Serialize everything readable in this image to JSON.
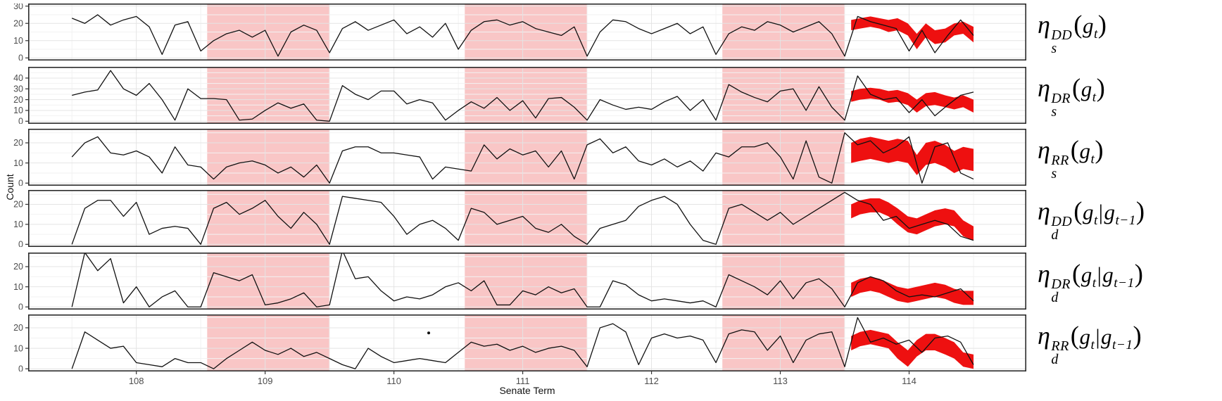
{
  "axes": {
    "x_label": "Senate Term",
    "y_label": "Count",
    "x_ticks": [
      108,
      109,
      110,
      111,
      112,
      113,
      114
    ]
  },
  "colors": {
    "band": "#f9c6c6",
    "ribbon": "#ee1010",
    "line": "#111111",
    "grid_major": "#e4e4e4",
    "grid_minor": "#f2f2f2",
    "panel_border": "#2b2b2b",
    "tick_text": "#4d4d4d",
    "tick_mark": "#333333",
    "background": "#ffffff"
  },
  "chart_data": {
    "type": "line",
    "xlabel": "Senate Term",
    "ylabel": "Count",
    "xlim": [
      107.16,
      114.91
    ],
    "x_start": 107.5,
    "x_step": 0.1,
    "x_count": 71,
    "shaded_terms": [
      [
        108.55,
        109.5
      ],
      [
        110.55,
        111.5
      ],
      [
        112.55,
        113.5
      ]
    ],
    "forecast_x": [
      113.55,
      113.62,
      113.7,
      113.77,
      113.84,
      113.91,
      113.99,
      114.06,
      114.13,
      114.2,
      114.28,
      114.35,
      114.42,
      114.5
    ],
    "panels": [
      {
        "name": "eta-s-DD",
        "label": {
          "sub": "s",
          "sup": "DD",
          "args": [
            "g_t"
          ],
          "text": "η_s^DD(g_t)"
        },
        "ylim": [
          -1.5,
          31.5
        ],
        "yticks": [
          0,
          10,
          20,
          30
        ],
        "yminor": [
          5,
          15,
          25
        ],
        "y": [
          23,
          20,
          25,
          19,
          22,
          24,
          18,
          2,
          19,
          21,
          4,
          10,
          14,
          16,
          12,
          16,
          1,
          15,
          19,
          16,
          3,
          17,
          21,
          16,
          19,
          22,
          14,
          18,
          12,
          20,
          5,
          16,
          21,
          22,
          19,
          21,
          17,
          15,
          13,
          18,
          1,
          15,
          22,
          21,
          17,
          14,
          17,
          20,
          14,
          18,
          2,
          14,
          18,
          16,
          21,
          19,
          15,
          18,
          21,
          14,
          1,
          24,
          21,
          19,
          17,
          4,
          16,
          3,
          13,
          22,
          13
        ],
        "ribbon_hi": [
          22,
          23,
          24,
          23,
          22,
          23,
          20,
          14,
          20,
          16,
          17,
          20,
          21,
          18
        ],
        "ribbon_lo": [
          16,
          17,
          18,
          17,
          15,
          16,
          13,
          5,
          12,
          8,
          9,
          13,
          14,
          9
        ]
      },
      {
        "name": "eta-s-DR",
        "label": {
          "sub": "s",
          "sup": "DR",
          "args": [
            "g_t"
          ],
          "text": "η_s^DR(g_t)"
        },
        "ylim": [
          -2.4,
          50.4
        ],
        "yticks": [
          0,
          10,
          20,
          30,
          40
        ],
        "yminor": [
          5,
          15,
          25,
          35,
          45
        ],
        "y": [
          24,
          27,
          29,
          47,
          30,
          24,
          35,
          20,
          1,
          30,
          21,
          21,
          20,
          1,
          2,
          10,
          17,
          12,
          16,
          1,
          0,
          33,
          25,
          20,
          28,
          28,
          16,
          20,
          17,
          1,
          10,
          18,
          12,
          22,
          10,
          19,
          3,
          21,
          22,
          13,
          1,
          20,
          15,
          11,
          13,
          11,
          18,
          23,
          10,
          20,
          1,
          34,
          27,
          22,
          18,
          28,
          30,
          10,
          32,
          13,
          1,
          42,
          25,
          20,
          22,
          8,
          20,
          5,
          15,
          24,
          27
        ],
        "ribbon_hi": [
          28,
          30,
          31,
          30,
          28,
          29,
          26,
          20,
          26,
          27,
          24,
          22,
          24,
          20
        ],
        "ribbon_lo": [
          18,
          20,
          21,
          20,
          17,
          18,
          15,
          8,
          14,
          15,
          13,
          11,
          13,
          8
        ]
      },
      {
        "name": "eta-s-RR",
        "label": {
          "sub": "s",
          "sup": "RR",
          "args": [
            "g_t"
          ],
          "text": "η_s^RR(g_t)"
        },
        "ylim": [
          -1.3,
          27
        ],
        "yticks": [
          0,
          10,
          20
        ],
        "yminor": [
          5,
          15,
          25
        ],
        "y": [
          13,
          20,
          23,
          15,
          14,
          16,
          13,
          5,
          18,
          9,
          8,
          2,
          8,
          10,
          11,
          9,
          5,
          8,
          3,
          9,
          0,
          16,
          18,
          18,
          15,
          15,
          14,
          13,
          2,
          8,
          7,
          6,
          19,
          12,
          17,
          14,
          16,
          8,
          16,
          2,
          19,
          22,
          15,
          18,
          11,
          9,
          12,
          8,
          11,
          6,
          15,
          13,
          18,
          18,
          20,
          13,
          2,
          21,
          3,
          0,
          25,
          19,
          21,
          15,
          18,
          23,
          0,
          18,
          20,
          5,
          2
        ],
        "ribbon_hi": [
          20,
          22,
          23,
          22,
          21,
          22,
          21,
          14,
          20,
          21,
          19,
          16,
          18,
          17
        ],
        "ribbon_lo": [
          10,
          11,
          12,
          11,
          10,
          11,
          10,
          4,
          9,
          10,
          8,
          5,
          7,
          6
        ]
      },
      {
        "name": "eta-d-DD",
        "label": {
          "sub": "d",
          "sup": "DD",
          "args": [
            "g_t",
            "g_t−1"
          ],
          "text": "η_d^DD(g_t|g_t−1)"
        },
        "ylim": [
          -1.3,
          27.2
        ],
        "yticks": [
          0,
          10,
          20
        ],
        "yminor": [
          5,
          15,
          25
        ],
        "y": [
          0,
          18,
          22,
          22,
          14,
          21,
          5,
          8,
          9,
          8,
          0,
          18,
          21,
          15,
          18,
          22,
          14,
          8,
          16,
          10,
          0,
          24,
          23,
          22,
          21,
          14,
          5,
          10,
          12,
          8,
          2,
          18,
          16,
          10,
          12,
          14,
          8,
          6,
          10,
          4,
          0,
          8,
          10,
          12,
          19,
          22,
          24,
          20,
          10,
          2,
          0,
          18,
          20,
          16,
          12,
          16,
          10,
          14,
          18,
          22,
          26,
          22,
          20,
          12,
          14,
          8,
          10,
          12,
          10,
          4,
          2
        ],
        "ribbon_hi": [
          20,
          22,
          23,
          23,
          21,
          18,
          14,
          13,
          15,
          17,
          18,
          17,
          12,
          9
        ],
        "ribbon_lo": [
          13,
          15,
          16,
          16,
          14,
          10,
          6,
          5,
          7,
          9,
          10,
          9,
          4,
          2
        ]
      },
      {
        "name": "eta-d-DR",
        "label": {
          "sub": "d",
          "sup": "DR",
          "args": [
            "g_t",
            "g_t−1"
          ],
          "text": "η_d^DR(g_t|g_t−1)"
        },
        "ylim": [
          -1.3,
          27
        ],
        "yticks": [
          0,
          10,
          20
        ],
        "yminor": [
          5,
          15,
          25
        ],
        "y": [
          0,
          27,
          18,
          24,
          2,
          10,
          0,
          5,
          8,
          0,
          0,
          17,
          15,
          13,
          16,
          1,
          2,
          4,
          7,
          0,
          1,
          28,
          14,
          15,
          8,
          3,
          5,
          4,
          6,
          10,
          12,
          8,
          13,
          1,
          1,
          8,
          6,
          10,
          7,
          9,
          0,
          0,
          13,
          11,
          6,
          3,
          4,
          3,
          2,
          3,
          0,
          16,
          13,
          10,
          6,
          13,
          4,
          12,
          14,
          9,
          0,
          12,
          15,
          13,
          8,
          5,
          6,
          5,
          7,
          9,
          3
        ],
        "ribbon_hi": [
          12,
          14,
          15,
          14,
          12,
          10,
          9,
          10,
          11,
          12,
          11,
          9,
          8,
          8
        ],
        "ribbon_lo": [
          5,
          7,
          8,
          7,
          5,
          3,
          2,
          3,
          4,
          5,
          4,
          2,
          1,
          1
        ]
      },
      {
        "name": "eta-d-RR",
        "label": {
          "sub": "d",
          "sup": "RR",
          "args": [
            "g_t",
            "g_t−1"
          ],
          "text": "η_d^RR(g_t|g_t−1)"
        },
        "ylim": [
          -1.3,
          26.5
        ],
        "yticks": [
          0,
          10,
          20
        ],
        "yminor": [
          5,
          15,
          25
        ],
        "point": {
          "x": 110.27,
          "y": 17.5
        },
        "y": [
          0,
          18,
          14,
          10,
          11,
          3,
          2,
          1,
          5,
          3,
          3,
          0,
          5,
          9,
          13,
          9,
          7,
          10,
          6,
          8,
          5,
          2,
          0,
          10,
          6,
          3,
          4,
          5,
          4,
          3,
          8,
          13,
          11,
          12,
          9,
          11,
          8,
          10,
          11,
          9,
          1,
          20,
          22,
          18,
          2,
          15,
          17,
          15,
          16,
          14,
          3,
          17,
          19,
          18,
          9,
          16,
          3,
          14,
          17,
          18,
          1,
          25,
          13,
          15,
          12,
          14,
          8,
          15,
          16,
          13,
          2
        ],
        "ribbon_hi": [
          16,
          18,
          19,
          18,
          17,
          13,
          9,
          14,
          17,
          17,
          15,
          13,
          8,
          7
        ],
        "ribbon_lo": [
          9,
          11,
          12,
          11,
          10,
          5,
          1,
          6,
          9,
          9,
          7,
          5,
          1,
          0
        ]
      }
    ]
  }
}
